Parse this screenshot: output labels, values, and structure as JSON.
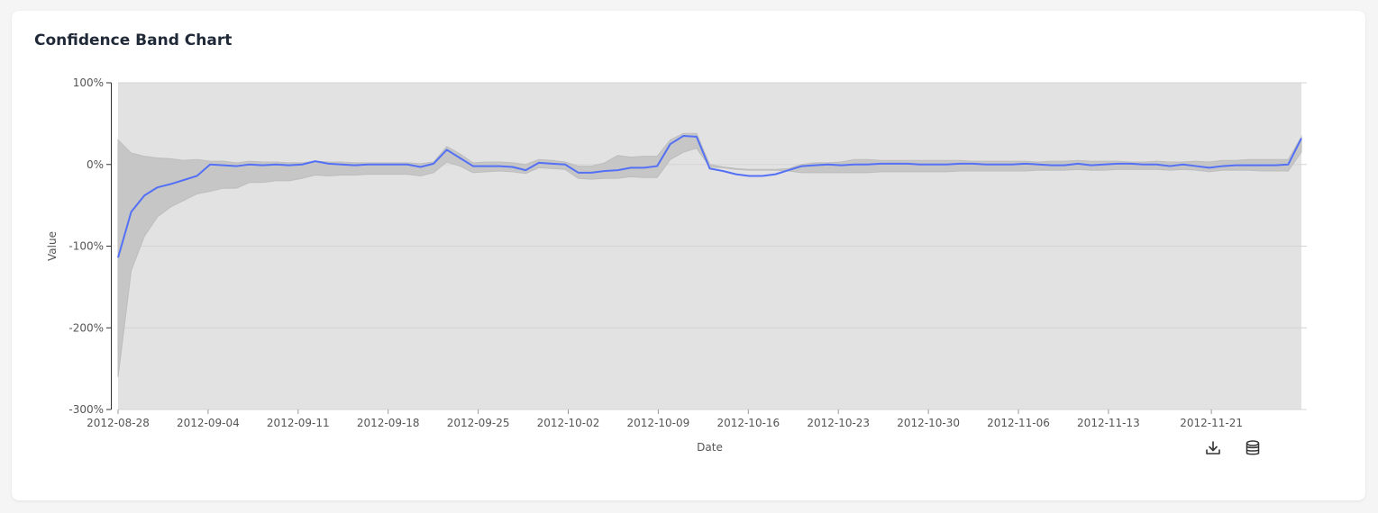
{
  "page": {
    "title": "Confidence Band Chart"
  },
  "toolbar": {
    "download_icon": "download-icon",
    "data_icon": "database-icon"
  },
  "colors": {
    "line": "#5470f5",
    "band_outer": "#c6c6c6",
    "band_inner": "#e2e2e2",
    "axis_text": "#555555"
  },
  "chart_data": {
    "type": "line",
    "title": "Confidence Band Chart",
    "xlabel": "Date",
    "ylabel": "Value",
    "ylim": [
      -3,
      1
    ],
    "y_ticks": [
      -3,
      -2,
      -1,
      0,
      1
    ],
    "y_tick_labels": [
      "-300%",
      "-200%",
      "-100%",
      "0%",
      "100%"
    ],
    "x_tick_labels": [
      "2012-08-28",
      "2012-09-04",
      "2012-09-11",
      "2012-09-18",
      "2012-09-25",
      "2012-10-02",
      "2012-10-09",
      "2012-10-16",
      "2012-10-23",
      "2012-10-30",
      "2012-11-06",
      "2012-11-13",
      "2012-11-21"
    ],
    "x_start": "2012-08-28",
    "x_end": "2012-11-28",
    "grid": true,
    "series": [
      {
        "values": [
          -1.14,
          -0.58,
          -0.38,
          -0.28,
          -0.24,
          -0.19,
          -0.14,
          0.0,
          -0.01,
          -0.02,
          0.0,
          -0.01,
          0.0,
          -0.01,
          0.0,
          0.04,
          0.01,
          0.0,
          -0.01,
          0.0,
          0.0,
          0.0,
          0.0,
          -0.03,
          0.01,
          0.18,
          0.08,
          -0.02,
          -0.02,
          -0.02,
          -0.03,
          -0.07,
          0.02,
          0.01,
          0.0,
          -0.1,
          -0.1,
          -0.08,
          -0.07,
          -0.04,
          -0.04,
          -0.02,
          0.25,
          0.35,
          0.34,
          -0.05,
          -0.08,
          -0.12,
          -0.14,
          -0.14,
          -0.12,
          -0.07,
          -0.02,
          -0.01,
          0.0,
          -0.01,
          0.0,
          0.0,
          0.01,
          0.01,
          0.01,
          0.0,
          0.0,
          0.0,
          0.01,
          0.01,
          0.0,
          0.0,
          0.0,
          0.01,
          0.0,
          -0.01,
          -0.01,
          0.01,
          -0.01,
          0.0,
          0.01,
          0.01,
          0.0,
          0.0,
          -0.02,
          0.0,
          -0.02,
          -0.04,
          -0.02,
          -0.01,
          -0.01,
          -0.01,
          -0.01,
          0.0,
          0.32
        ]
      },
      {
        "values": [
          -2.6,
          -1.3,
          -0.88,
          -0.64,
          -0.52,
          -0.44,
          -0.36,
          -0.33,
          -0.29,
          -0.29,
          -0.22,
          -0.22,
          -0.2,
          -0.2,
          -0.17,
          -0.13,
          -0.14,
          -0.13,
          -0.13,
          -0.12,
          -0.12,
          -0.12,
          -0.12,
          -0.14,
          -0.1,
          0.03,
          -0.02,
          -0.1,
          -0.09,
          -0.08,
          -0.09,
          -0.11,
          -0.04,
          -0.05,
          -0.06,
          -0.17,
          -0.18,
          -0.17,
          -0.17,
          -0.15,
          -0.16,
          -0.16,
          0.06,
          0.15,
          0.2,
          -0.03,
          -0.04,
          -0.06,
          -0.07,
          -0.07,
          -0.07,
          -0.08,
          -0.1,
          -0.1,
          -0.1,
          -0.1,
          -0.1,
          -0.1,
          -0.09,
          -0.09,
          -0.09,
          -0.09,
          -0.09,
          -0.09,
          -0.08,
          -0.08,
          -0.08,
          -0.08,
          -0.08,
          -0.08,
          -0.07,
          -0.07,
          -0.07,
          -0.06,
          -0.07,
          -0.07,
          -0.06,
          -0.06,
          -0.06,
          -0.06,
          -0.07,
          -0.06,
          -0.07,
          -0.09,
          -0.07,
          -0.07,
          -0.07,
          -0.08,
          -0.08,
          -0.08,
          0.15
        ]
      },
      {
        "values": [
          0.3,
          0.14,
          0.1,
          0.08,
          0.07,
          0.05,
          0.06,
          0.04,
          0.04,
          0.02,
          0.04,
          0.03,
          0.03,
          0.02,
          0.02,
          0.04,
          0.03,
          0.03,
          0.02,
          0.02,
          0.02,
          0.02,
          0.02,
          0.01,
          0.03,
          0.22,
          0.13,
          0.02,
          0.03,
          0.03,
          0.02,
          0.0,
          0.06,
          0.05,
          0.03,
          -0.02,
          -0.02,
          0.02,
          0.11,
          0.09,
          0.1,
          0.1,
          0.3,
          0.38,
          0.38,
          0.0,
          -0.03,
          -0.05,
          -0.06,
          -0.06,
          -0.06,
          -0.05,
          0.0,
          0.02,
          0.02,
          0.03,
          0.06,
          0.06,
          0.05,
          0.05,
          0.05,
          0.05,
          0.05,
          0.05,
          0.05,
          0.04,
          0.04,
          0.04,
          0.04,
          0.04,
          0.03,
          0.04,
          0.04,
          0.05,
          0.04,
          0.04,
          0.04,
          0.03,
          0.03,
          0.04,
          0.03,
          0.03,
          0.04,
          0.03,
          0.05,
          0.05,
          0.06,
          0.06,
          0.06,
          0.06,
          0.34
        ]
      }
    ]
  }
}
